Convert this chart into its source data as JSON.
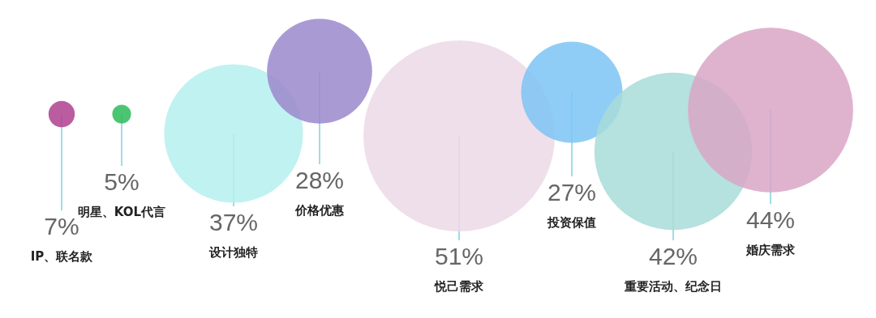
{
  "chart_data": {
    "type": "other",
    "categories": [
      "IP、联名款",
      "明星、KOL代言",
      "设计独特",
      "价格优惠",
      "悦己需求",
      "投资保值",
      "重要活动、纪念日",
      "婚庆需求"
    ],
    "values": [
      7,
      5,
      37,
      28,
      51,
      27,
      42,
      44
    ],
    "colors": [
      "#b0408f",
      "#2dbb5a",
      "#b5f0ee",
      "#9b88cc",
      "#ecd9e6",
      "#7cc4f5",
      "#a8dcd8",
      "#d9a6c6"
    ],
    "value_labels": [
      "7%",
      "5%",
      "37%",
      "28%",
      "51%",
      "27%",
      "42%",
      "44%"
    ]
  }
}
